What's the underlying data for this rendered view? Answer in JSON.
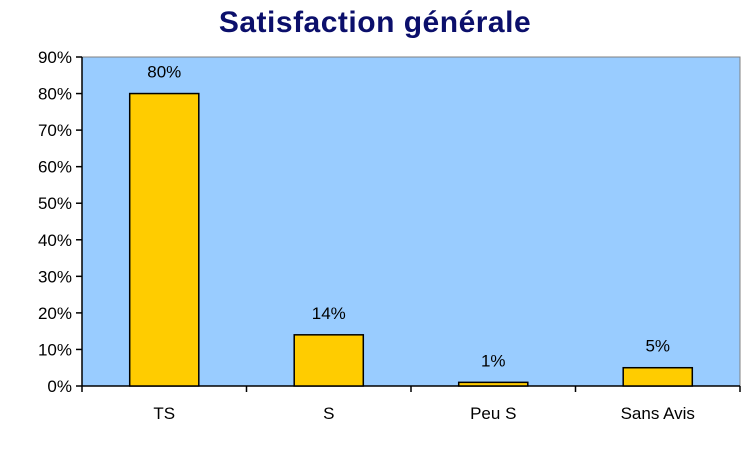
{
  "chart_data": {
    "type": "bar",
    "title": "Satisfaction générale",
    "xlabel": "",
    "ylabel": "",
    "categories": [
      "TS",
      "S",
      "Peu S",
      "Sans Avis"
    ],
    "values": [
      80,
      14,
      1,
      5
    ],
    "data_labels": [
      "80%",
      "14%",
      "1%",
      "5%"
    ],
    "ylim": [
      0,
      90
    ],
    "y_ticks": [
      0,
      10,
      20,
      30,
      40,
      50,
      60,
      70,
      80,
      90
    ],
    "y_tick_labels": [
      "0%",
      "10%",
      "20%",
      "30%",
      "40%",
      "50%",
      "60%",
      "70%",
      "80%",
      "90%"
    ],
    "grid": false,
    "legend": "none",
    "colors": {
      "plot_background": "#99ccff",
      "bar_fill": "#ffcc00",
      "bar_stroke": "#000000",
      "title": "#0b0f6b"
    }
  }
}
